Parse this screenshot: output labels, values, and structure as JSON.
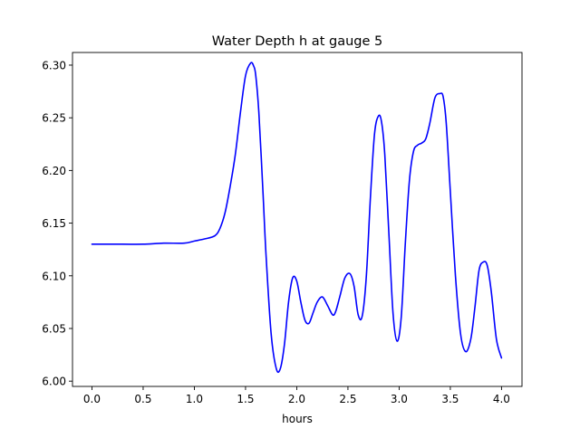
{
  "chart_data": {
    "type": "line",
    "title": "Water Depth h at gauge 5",
    "xlabel": "hours",
    "ylabel": "",
    "xlim": [
      -0.19,
      4.2
    ],
    "ylim": [
      5.995,
      6.312
    ],
    "xticks": [
      0.0,
      0.5,
      1.0,
      1.5,
      2.0,
      2.5,
      3.0,
      3.5,
      4.0
    ],
    "xtick_labels": [
      "0.0",
      "0.5",
      "1.0",
      "1.5",
      "2.0",
      "2.5",
      "3.0",
      "3.5",
      "4.0"
    ],
    "yticks": [
      6.0,
      6.05,
      6.1,
      6.15,
      6.2,
      6.25,
      6.3
    ],
    "ytick_labels": [
      "6.00",
      "6.05",
      "6.10",
      "6.15",
      "6.20",
      "6.25",
      "6.30"
    ],
    "grid": false,
    "legend": null,
    "series": [
      {
        "color": "#0000ff",
        "x": [
          0.0,
          0.3,
          0.5,
          0.7,
          0.9,
          1.0,
          1.1,
          1.2,
          1.25,
          1.3,
          1.35,
          1.4,
          1.45,
          1.5,
          1.55,
          1.58,
          1.6,
          1.63,
          1.67,
          1.7,
          1.75,
          1.8,
          1.84,
          1.88,
          1.92,
          1.96,
          2.0,
          2.04,
          2.08,
          2.12,
          2.16,
          2.2,
          2.25,
          2.3,
          2.35,
          2.38,
          2.42,
          2.47,
          2.52,
          2.56,
          2.6,
          2.64,
          2.68,
          2.72,
          2.76,
          2.8,
          2.83,
          2.86,
          2.9,
          2.94,
          2.98,
          3.02,
          3.06,
          3.1,
          3.14,
          3.18,
          3.22,
          3.26,
          3.3,
          3.35,
          3.4,
          3.43,
          3.46,
          3.5,
          3.55,
          3.6,
          3.65,
          3.7,
          3.74,
          3.78,
          3.82,
          3.86,
          3.9,
          3.95,
          4.0
        ],
        "y": [
          6.13,
          6.13,
          6.13,
          6.131,
          6.131,
          6.133,
          6.135,
          6.138,
          6.145,
          6.16,
          6.185,
          6.215,
          6.255,
          6.29,
          6.302,
          6.299,
          6.29,
          6.255,
          6.18,
          6.12,
          6.045,
          6.012,
          6.012,
          6.035,
          6.075,
          6.098,
          6.095,
          6.075,
          6.058,
          6.055,
          6.065,
          6.075,
          6.08,
          6.072,
          6.063,
          6.066,
          6.08,
          6.098,
          6.102,
          6.09,
          6.063,
          6.062,
          6.1,
          6.175,
          6.235,
          6.252,
          6.245,
          6.215,
          6.14,
          6.065,
          6.038,
          6.06,
          6.13,
          6.19,
          6.218,
          6.224,
          6.226,
          6.23,
          6.245,
          6.269,
          6.273,
          6.27,
          6.245,
          6.18,
          6.1,
          6.045,
          6.028,
          6.04,
          6.07,
          6.105,
          6.113,
          6.11,
          6.085,
          6.04,
          6.022
        ]
      }
    ]
  }
}
